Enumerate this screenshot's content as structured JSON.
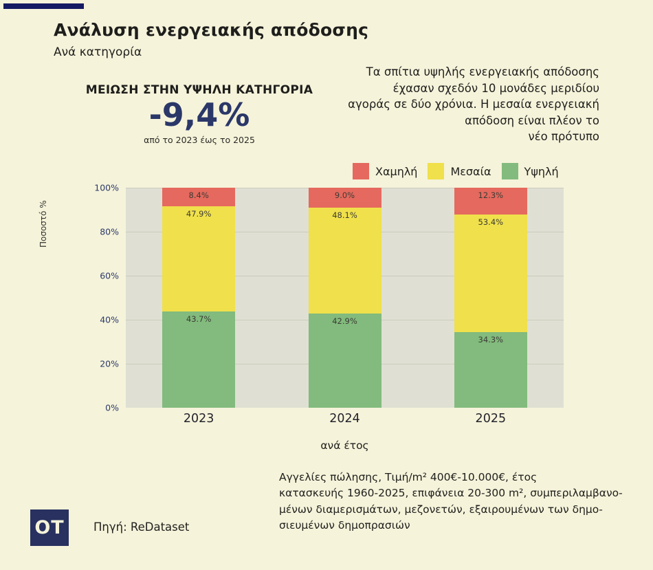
{
  "page": {
    "background": "#f5f3da",
    "accent_bar_color": "#151b63"
  },
  "header": {
    "title": "Ανάλυση ενεργειακής απόδοσης",
    "subtitle": "Ανά κατηγορία"
  },
  "stat": {
    "heading": "ΜΕΙΩΣΗ ΣΤΗΝ ΥΨΗΛΗ ΚΑΤΗΓΟΡΙΑ",
    "value": "-9,4%",
    "value_color": "#2a3768",
    "caption": "από το 2023 έως το 2025"
  },
  "annotation": {
    "text": "Τα σπίτια υψηλής ενεργειακής απόδοσης\nέχασαν σχεδόν 10 μονάδες μεριδίου\nαγοράς σε δύο χρόνια. Η μεσαία ενεργειακή\nαπόδοση είναι πλέον το\nνέο πρότυπο"
  },
  "chart_data": {
    "type": "bar",
    "stacked": true,
    "title": "Ανάλυση ενεργειακής απόδοσης",
    "categories": [
      "2023",
      "2024",
      "2025"
    ],
    "series": [
      {
        "name": "Χαμηλή",
        "color": "#e5695e",
        "values": [
          8.4,
          9.0,
          12.3
        ]
      },
      {
        "name": "Μεσαία",
        "color": "#f0e04b",
        "values": [
          47.9,
          48.1,
          53.4
        ]
      },
      {
        "name": "Υψηλή",
        "color": "#82bb7d",
        "values": [
          43.7,
          42.9,
          34.3
        ]
      }
    ],
    "stack_order_visual": "Χαμηλή on top, Μεσαία middle, Υψηλή bottom",
    "xlabel": "ανά έτος",
    "ylabel": "Ποσοστό %",
    "ylim": [
      0,
      100
    ],
    "yticks": [
      "0%",
      "20%",
      "40%",
      "60%",
      "80%",
      "100%"
    ],
    "grid": true,
    "legend_position": "top-right",
    "plot_background": "#dfe0d3",
    "value_label_suffix": "%"
  },
  "footer": {
    "note": "Αγγελίες πώλησης, Τιμή/m² 400€-10.000€, έτος\nκατασκευής 1960-2025, επιφάνεια 20-300 m², συμπεριλαμβανο-\nμένων διαμερισμάτων, μεζονετών, εξαιρουμένων των δημο-\nσιευμένων δημοπρασιών",
    "logo_text": "OT",
    "logo_color": "#28315f",
    "source": "Πηγή: ReDataset"
  }
}
